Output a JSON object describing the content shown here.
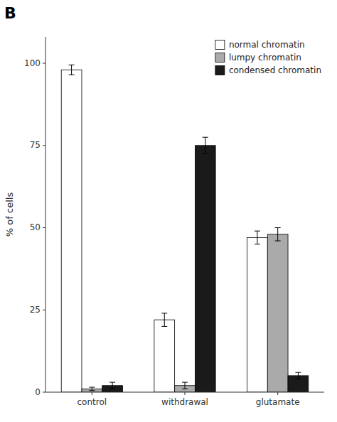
{
  "chart_data": {
    "type": "bar",
    "annotations": [
      "B"
    ],
    "ylabel": "% of cells",
    "categories": [
      "control",
      "withdrawal",
      "glutamate"
    ],
    "series": [
      {
        "name": "normal chromatin",
        "color": "#ffffff",
        "values": [
          98,
          22,
          47
        ],
        "errors": [
          1.5,
          2,
          2
        ]
      },
      {
        "name": "lumpy chromatin",
        "color": "#aaaaaa",
        "values": [
          1,
          2,
          48
        ],
        "errors": [
          0.5,
          1,
          2
        ]
      },
      {
        "name": "condensed chromatin",
        "color": "#1a1a1a",
        "values": [
          2,
          75,
          5
        ],
        "errors": [
          1,
          2.5,
          1
        ]
      }
    ],
    "ylim": [
      0,
      108
    ],
    "yticks": [
      0,
      25,
      50,
      75,
      100
    ],
    "legend": "upper right",
    "grid": false
  }
}
